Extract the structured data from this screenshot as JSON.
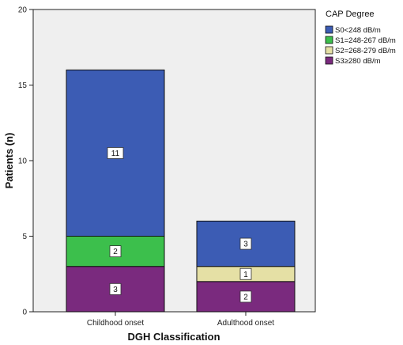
{
  "chart_data": {
    "type": "bar",
    "stacked": true,
    "categories": [
      "Childhood onset",
      "Adulthood onset"
    ],
    "series": [
      {
        "name": "S3≥280 dB/m",
        "values": [
          3,
          2
        ],
        "color": "#7a2a7e"
      },
      {
        "name": "S2=268-279 dB/m",
        "values": [
          0,
          1
        ],
        "color": "#e5e0a5"
      },
      {
        "name": "S1=248-267 dB/m",
        "values": [
          2,
          0
        ],
        "color": "#3cbf4c"
      },
      {
        "name": "S0<248 dB/m",
        "values": [
          11,
          3
        ],
        "color": "#3c5cb4"
      }
    ],
    "legend_order": [
      "S0<248 dB/m",
      "S1=248-267 dB/m",
      "S2=268-279 dB/m",
      "S3≥280 dB/m"
    ],
    "xlabel": "DGH Classification",
    "ylabel": "Patients (n)",
    "ylim": [
      0,
      20
    ],
    "yticks": [
      0,
      5,
      10,
      15,
      20
    ],
    "legend_title": "CAP Degree",
    "legend_position": "right",
    "grid": false,
    "plot_background": "#efefef"
  }
}
